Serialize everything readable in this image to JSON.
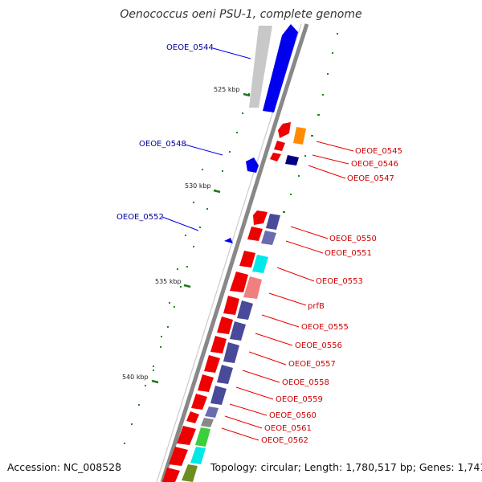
{
  "title": "Oenococcus oeni PSU-1, complete genome",
  "footer": {
    "accession": "Accession: NC_008528",
    "summary": "Topology: circular; Length: 1,780,517 bp; Genes: 1,741"
  },
  "ticks": [
    "525 kbp",
    "530 kbp",
    "535 kbp",
    "540 kbp"
  ],
  "forward_labels": [
    "OEOE_0544",
    "OEOE_0548",
    "OEOE_0552"
  ],
  "reverse_labels": [
    "OEOE_0545",
    "OEOE_0546",
    "OEOE_0547",
    "OEOE_0550",
    "OEOE_0551",
    "OEOE_0553",
    "prfB",
    "OEOE_0555",
    "OEOE_0556",
    "OEOE_0557",
    "OEOE_0558",
    "OEOE_0559",
    "OEOE_0560",
    "OEOE_0561",
    "OEOE_0562"
  ],
  "colors": {
    "forward_gene": "#0000ee",
    "reverse_gene": "#ee0000",
    "backbone": "#888888",
    "tick": "#1a7a1a",
    "forward_label": "#00009a",
    "reverse_label": "#cc0000"
  }
}
